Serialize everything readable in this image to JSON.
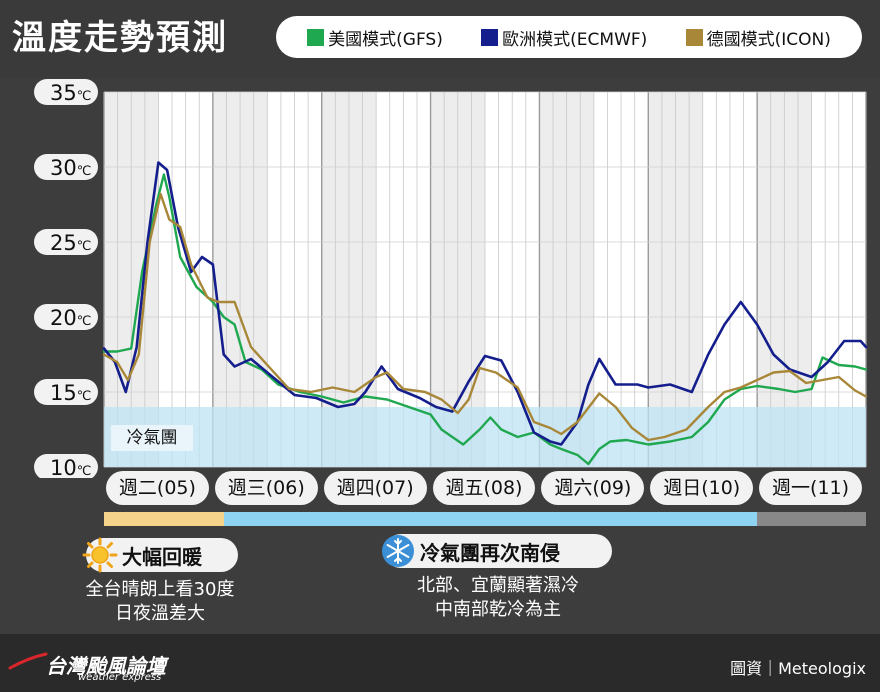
{
  "title": "溫度走勢預測",
  "legend": [
    {
      "name": "美國模式(GFS)",
      "color": "#1fa84f"
    },
    {
      "name": "歐洲模式(ECMWF)",
      "color": "#141e8c"
    },
    {
      "name": "德國模式(ICON)",
      "color": "#a88838"
    }
  ],
  "cold_air_label": "冷氣團",
  "days": [
    "週二(05)",
    "週三(06)",
    "週四(07)",
    "週五(08)",
    "週六(09)",
    "週日(10)",
    "週一(11)"
  ],
  "timeline": [
    {
      "color": "#f6d38b",
      "from": 0,
      "to": 1.1
    },
    {
      "color": "#8fd3f2",
      "from": 1.1,
      "to": 6.0
    },
    {
      "color": "#888888",
      "from": 6.0,
      "to": 7.0
    }
  ],
  "tags": [
    {
      "icon": "sun-icon",
      "label": "大幅回暖",
      "desc": [
        "全台晴朗上看30度",
        "日夜溫差大"
      ]
    },
    {
      "icon": "snowflake-icon",
      "label": "冷氣團再次南侵",
      "desc": [
        "北部、宜蘭顯著濕冷",
        "中南部乾冷為主"
      ]
    }
  ],
  "brand": {
    "name": "台灣颱風論壇",
    "sub": "weather express"
  },
  "credit": "圖資｜Meteologix",
  "chart_data": {
    "type": "line",
    "title": "溫度走勢預測",
    "x_label": "",
    "y_label": "",
    "x_unit": "day (from 週二 00:00)",
    "ylim": [
      10,
      35
    ],
    "yticks": [
      "35℃",
      "30℃",
      "25℃",
      "20℃",
      "15℃",
      "10℃"
    ],
    "ytick_values": [
      35,
      30,
      25,
      20,
      15,
      10
    ],
    "cold_air_threshold": 14,
    "series": [
      {
        "name": "美國模式(GFS)",
        "color": "#1fa84f",
        "points": [
          [
            0.0,
            17.7
          ],
          [
            0.12,
            17.7
          ],
          [
            0.25,
            17.9
          ],
          [
            0.35,
            23.0
          ],
          [
            0.48,
            27.5
          ],
          [
            0.55,
            29.5
          ],
          [
            0.6,
            28.0
          ],
          [
            0.7,
            24.0
          ],
          [
            0.85,
            22.0
          ],
          [
            1.0,
            21.0
          ],
          [
            1.1,
            20.0
          ],
          [
            1.2,
            19.5
          ],
          [
            1.3,
            17.0
          ],
          [
            1.45,
            16.5
          ],
          [
            1.6,
            15.5
          ],
          [
            1.8,
            15.0
          ],
          [
            2.0,
            14.7
          ],
          [
            2.2,
            14.3
          ],
          [
            2.4,
            14.7
          ],
          [
            2.6,
            14.5
          ],
          [
            2.8,
            14.0
          ],
          [
            3.0,
            13.5
          ],
          [
            3.1,
            12.5
          ],
          [
            3.2,
            12.0
          ],
          [
            3.3,
            11.5
          ],
          [
            3.45,
            12.5
          ],
          [
            3.55,
            13.3
          ],
          [
            3.65,
            12.5
          ],
          [
            3.8,
            12.0
          ],
          [
            3.95,
            12.3
          ],
          [
            4.1,
            11.5
          ],
          [
            4.2,
            11.2
          ],
          [
            4.35,
            10.8
          ],
          [
            4.45,
            10.2
          ],
          [
            4.55,
            11.2
          ],
          [
            4.65,
            11.7
          ],
          [
            4.8,
            11.8
          ],
          [
            5.0,
            11.5
          ],
          [
            5.2,
            11.7
          ],
          [
            5.4,
            12.0
          ],
          [
            5.55,
            13.0
          ],
          [
            5.7,
            14.5
          ],
          [
            5.85,
            15.2
          ],
          [
            6.0,
            15.4
          ],
          [
            6.2,
            15.2
          ],
          [
            6.35,
            15.0
          ],
          [
            6.5,
            15.2
          ],
          [
            6.6,
            17.3
          ],
          [
            6.75,
            16.8
          ],
          [
            6.9,
            16.7
          ],
          [
            7.0,
            16.5
          ]
        ]
      },
      {
        "name": "歐洲模式(ECMWF)",
        "color": "#141e8c",
        "points": [
          [
            0.0,
            17.9
          ],
          [
            0.1,
            17.0
          ],
          [
            0.2,
            15.0
          ],
          [
            0.3,
            18.0
          ],
          [
            0.4,
            25.0
          ],
          [
            0.5,
            30.3
          ],
          [
            0.58,
            29.8
          ],
          [
            0.68,
            26.0
          ],
          [
            0.8,
            23.0
          ],
          [
            0.9,
            24.0
          ],
          [
            1.0,
            23.5
          ],
          [
            1.1,
            17.5
          ],
          [
            1.2,
            16.7
          ],
          [
            1.35,
            17.2
          ],
          [
            1.55,
            16.0
          ],
          [
            1.75,
            14.8
          ],
          [
            1.95,
            14.6
          ],
          [
            2.15,
            14.0
          ],
          [
            2.3,
            14.2
          ],
          [
            2.4,
            15.0
          ],
          [
            2.55,
            16.7
          ],
          [
            2.7,
            15.2
          ],
          [
            2.9,
            14.6
          ],
          [
            3.05,
            14.0
          ],
          [
            3.2,
            13.7
          ],
          [
            3.35,
            15.7
          ],
          [
            3.5,
            17.4
          ],
          [
            3.65,
            17.1
          ],
          [
            3.8,
            15.0
          ],
          [
            3.95,
            12.3
          ],
          [
            4.1,
            11.7
          ],
          [
            4.2,
            11.5
          ],
          [
            4.35,
            13.0
          ],
          [
            4.45,
            15.5
          ],
          [
            4.55,
            17.2
          ],
          [
            4.7,
            15.5
          ],
          [
            4.9,
            15.5
          ],
          [
            5.0,
            15.3
          ],
          [
            5.2,
            15.5
          ],
          [
            5.4,
            15.0
          ],
          [
            5.55,
            17.5
          ],
          [
            5.7,
            19.5
          ],
          [
            5.85,
            21.0
          ],
          [
            6.0,
            19.5
          ],
          [
            6.15,
            17.5
          ],
          [
            6.3,
            16.5
          ],
          [
            6.5,
            16.0
          ],
          [
            6.65,
            17.0
          ],
          [
            6.8,
            18.4
          ],
          [
            6.95,
            18.4
          ],
          [
            7.0,
            18.0
          ]
        ]
      },
      {
        "name": "德國模式(ICON)",
        "color": "#a88838",
        "points": [
          [
            0.0,
            17.5
          ],
          [
            0.12,
            17.0
          ],
          [
            0.22,
            15.8
          ],
          [
            0.32,
            17.5
          ],
          [
            0.42,
            25.0
          ],
          [
            0.52,
            28.2
          ],
          [
            0.6,
            26.5
          ],
          [
            0.7,
            26.0
          ],
          [
            0.8,
            23.5
          ],
          [
            0.95,
            21.3
          ],
          [
            1.05,
            21.0
          ],
          [
            1.2,
            21.0
          ],
          [
            1.35,
            18.0
          ],
          [
            1.5,
            16.8
          ],
          [
            1.7,
            15.2
          ],
          [
            1.9,
            15.0
          ],
          [
            2.1,
            15.3
          ],
          [
            2.3,
            15.0
          ],
          [
            2.5,
            16.0
          ],
          [
            2.6,
            16.3
          ],
          [
            2.75,
            15.2
          ],
          [
            2.95,
            15.0
          ],
          [
            3.1,
            14.5
          ],
          [
            3.25,
            13.6
          ],
          [
            3.35,
            14.5
          ],
          [
            3.45,
            16.6
          ],
          [
            3.6,
            16.3
          ],
          [
            3.8,
            15.3
          ],
          [
            3.95,
            13.0
          ],
          [
            4.1,
            12.6
          ],
          [
            4.2,
            12.2
          ],
          [
            4.35,
            13.0
          ],
          [
            4.55,
            14.9
          ],
          [
            4.7,
            14.0
          ],
          [
            4.85,
            12.6
          ],
          [
            5.0,
            11.8
          ],
          [
            5.15,
            12.0
          ],
          [
            5.35,
            12.5
          ],
          [
            5.55,
            14.0
          ],
          [
            5.7,
            15.0
          ],
          [
            5.85,
            15.3
          ],
          [
            6.0,
            15.8
          ],
          [
            6.15,
            16.3
          ],
          [
            6.3,
            16.4
          ],
          [
            6.45,
            15.6
          ],
          [
            6.6,
            15.8
          ],
          [
            6.75,
            16.0
          ],
          [
            6.9,
            15.1
          ],
          [
            7.0,
            14.7
          ]
        ]
      }
    ]
  }
}
